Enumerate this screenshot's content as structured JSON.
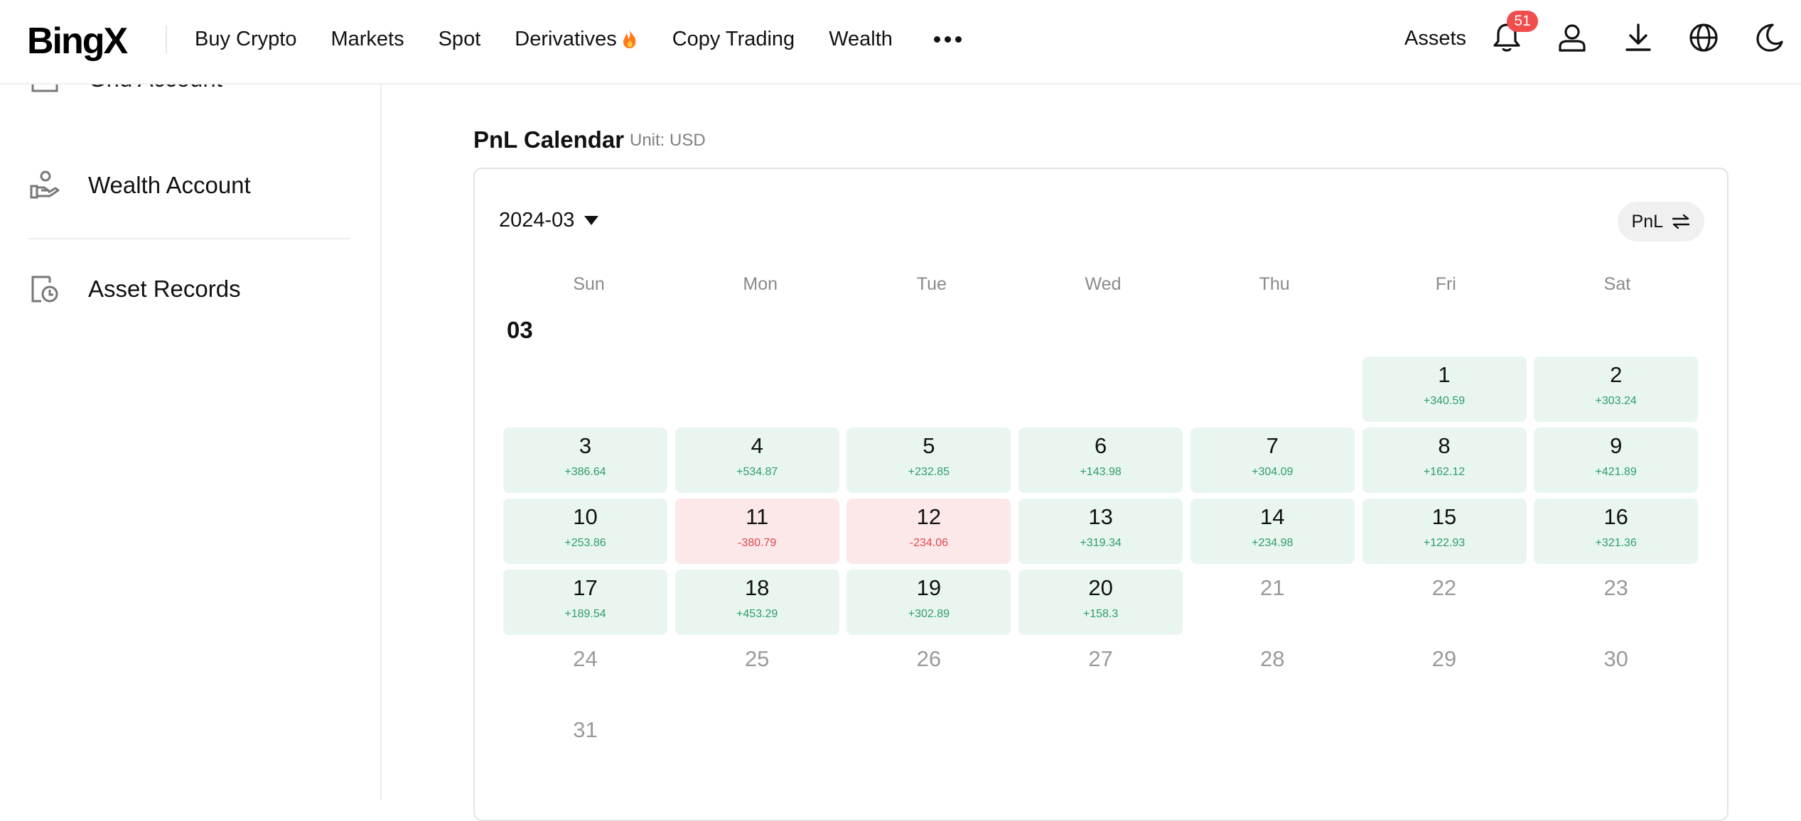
{
  "header": {
    "logo": "BingX",
    "nav": [
      {
        "label": "Buy Crypto"
      },
      {
        "label": "Markets"
      },
      {
        "label": "Spot"
      },
      {
        "label": "Derivatives",
        "icon": "fire-icon"
      },
      {
        "label": "Copy Trading"
      },
      {
        "label": "Wealth"
      }
    ],
    "assets_label": "Assets",
    "notification_count": "51",
    "icons": [
      "bell-icon",
      "user-icon",
      "download-icon",
      "globe-icon",
      "moon-icon"
    ]
  },
  "sidebar": {
    "items": [
      {
        "label": "Grid Account",
        "icon": "grid-account-icon"
      },
      {
        "label": "Wealth Account",
        "icon": "hand-coin-icon"
      },
      {
        "label": "Asset Records",
        "icon": "records-clock-icon"
      }
    ]
  },
  "calendar": {
    "title": "PnL Calendar",
    "unit": "Unit: USD",
    "selected_month": "2024-03",
    "toggle_label": "PnL",
    "weekdays": [
      "Sun",
      "Mon",
      "Tue",
      "Wed",
      "Thu",
      "Fri",
      "Sat"
    ],
    "month_label": "03",
    "start_weekday": 5,
    "days": [
      {
        "day": "1",
        "pnl": "+340.59",
        "status": "profit"
      },
      {
        "day": "2",
        "pnl": "+303.24",
        "status": "profit"
      },
      {
        "day": "3",
        "pnl": "+386.64",
        "status": "profit"
      },
      {
        "day": "4",
        "pnl": "+534.87",
        "status": "profit"
      },
      {
        "day": "5",
        "pnl": "+232.85",
        "status": "profit"
      },
      {
        "day": "6",
        "pnl": "+143.98",
        "status": "profit"
      },
      {
        "day": "7",
        "pnl": "+304.09",
        "status": "profit"
      },
      {
        "day": "8",
        "pnl": "+162.12",
        "status": "profit"
      },
      {
        "day": "9",
        "pnl": "+421.89",
        "status": "profit"
      },
      {
        "day": "10",
        "pnl": "+253.86",
        "status": "profit"
      },
      {
        "day": "11",
        "pnl": "-380.79",
        "status": "loss"
      },
      {
        "day": "12",
        "pnl": "-234.06",
        "status": "loss"
      },
      {
        "day": "13",
        "pnl": "+319.34",
        "status": "profit"
      },
      {
        "day": "14",
        "pnl": "+234.98",
        "status": "profit"
      },
      {
        "day": "15",
        "pnl": "+122.93",
        "status": "profit"
      },
      {
        "day": "16",
        "pnl": "+321.36",
        "status": "profit"
      },
      {
        "day": "17",
        "pnl": "+189.54",
        "status": "profit"
      },
      {
        "day": "18",
        "pnl": "+453.29",
        "status": "profit"
      },
      {
        "day": "19",
        "pnl": "+302.89",
        "status": "profit"
      },
      {
        "day": "20",
        "pnl": "+158.3",
        "status": "profit"
      },
      {
        "day": "21",
        "pnl": "",
        "status": "empty"
      },
      {
        "day": "22",
        "pnl": "",
        "status": "empty"
      },
      {
        "day": "23",
        "pnl": "",
        "status": "empty"
      },
      {
        "day": "24",
        "pnl": "",
        "status": "empty"
      },
      {
        "day": "25",
        "pnl": "",
        "status": "empty"
      },
      {
        "day": "26",
        "pnl": "",
        "status": "empty"
      },
      {
        "day": "27",
        "pnl": "",
        "status": "empty"
      },
      {
        "day": "28",
        "pnl": "",
        "status": "empty"
      },
      {
        "day": "29",
        "pnl": "",
        "status": "empty"
      },
      {
        "day": "30",
        "pnl": "",
        "status": "empty"
      },
      {
        "day": "31",
        "pnl": "",
        "status": "empty"
      }
    ]
  },
  "colors": {
    "profit_bg": "#e9f6ef",
    "profit_text": "#2e9c6a",
    "loss_bg": "#fde8e9",
    "loss_text": "#e0474c",
    "badge": "#f04d4d"
  }
}
